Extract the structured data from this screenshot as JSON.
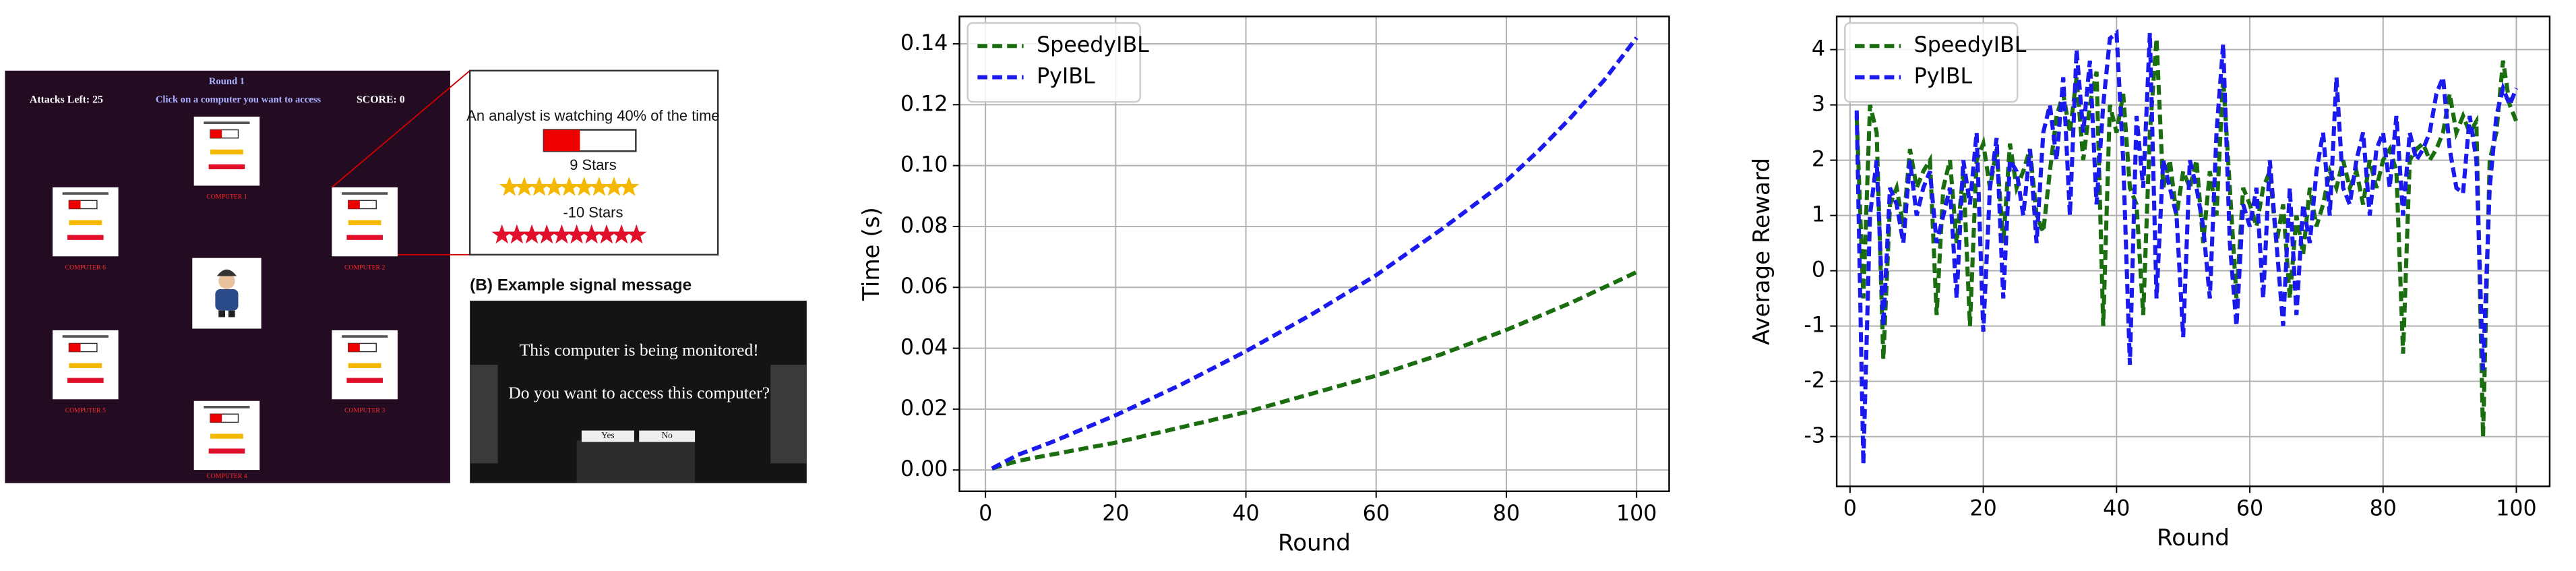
{
  "game": {
    "round": "Round 1",
    "attacks_left": "Attacks Left:  25",
    "instruction": "Click on a computer you want to access",
    "score": "SCORE:  0",
    "computers": [
      "COMPUTER 1",
      "COMPUTER 2",
      "COMPUTER 3",
      "COMPUTER 4",
      "COMPUTER 5",
      "COMPUTER 6"
    ],
    "zoom": {
      "analyst_text": "An analyst is watching 40% of the time",
      "reward_stars": "9 Stars",
      "penalty_stars": "-10 Stars"
    },
    "signal": {
      "caption": "(B) Example signal message",
      "line1": "This computer is being monitored!",
      "line2": "Do you want to access this computer?",
      "yes": "Yes",
      "no": "No"
    }
  },
  "chart_data": [
    {
      "type": "line",
      "xlabel": "Round",
      "ylabel": "Time (s)",
      "legend": "upper left",
      "grid": true,
      "x": [
        1,
        5,
        10,
        15,
        20,
        25,
        30,
        35,
        40,
        45,
        50,
        55,
        60,
        65,
        70,
        75,
        80,
        85,
        90,
        95,
        100
      ],
      "series": [
        {
          "name": "SpeedyIBL",
          "color": "#1a6e0f",
          "values": [
            0.0005,
            0.003,
            0.005,
            0.007,
            0.009,
            0.0115,
            0.014,
            0.0165,
            0.019,
            0.022,
            0.025,
            0.028,
            0.031,
            0.0345,
            0.038,
            0.042,
            0.046,
            0.0505,
            0.055,
            0.06,
            0.065
          ]
        },
        {
          "name": "PyIBL",
          "color": "#1a1aee",
          "values": [
            0.0005,
            0.005,
            0.009,
            0.0135,
            0.018,
            0.023,
            0.028,
            0.0335,
            0.039,
            0.045,
            0.051,
            0.0575,
            0.064,
            0.0715,
            0.079,
            0.087,
            0.095,
            0.105,
            0.116,
            0.128,
            0.142
          ]
        }
      ],
      "xlim": [
        -4,
        105
      ],
      "xticks": [
        0,
        20,
        40,
        60,
        80,
        100
      ],
      "ylim": [
        -0.007,
        0.149
      ],
      "yticks": [
        {
          "value": 0,
          "label": "0.00"
        },
        {
          "value": 0.02,
          "label": "0.02"
        },
        {
          "value": 0.04,
          "label": "0.04"
        },
        {
          "value": 0.06,
          "label": "0.06"
        },
        {
          "value": 0.08,
          "label": "0.08"
        },
        {
          "value": 0.1,
          "label": "0.10"
        },
        {
          "value": 0.12,
          "label": "0.12"
        },
        {
          "value": 0.14,
          "label": "0.14"
        }
      ]
    },
    {
      "type": "line",
      "xlabel": "Round",
      "ylabel": "Average Reward",
      "legend": "upper left",
      "grid": true,
      "x": [
        1,
        2,
        3,
        4,
        5,
        6,
        7,
        8,
        9,
        10,
        11,
        12,
        13,
        14,
        15,
        16,
        17,
        18,
        19,
        20,
        21,
        22,
        23,
        24,
        25,
        26,
        27,
        28,
        29,
        30,
        31,
        32,
        33,
        34,
        35,
        36,
        37,
        38,
        39,
        40,
        41,
        42,
        43,
        44,
        45,
        46,
        47,
        48,
        49,
        50,
        51,
        52,
        53,
        54,
        55,
        56,
        57,
        58,
        59,
        60,
        61,
        62,
        63,
        64,
        65,
        66,
        67,
        68,
        69,
        70,
        71,
        72,
        73,
        74,
        75,
        76,
        77,
        78,
        79,
        80,
        81,
        82,
        83,
        84,
        85,
        86,
        87,
        88,
        89,
        90,
        91,
        92,
        93,
        94,
        95,
        96,
        97,
        98,
        99,
        100
      ],
      "series": [
        {
          "name": "SpeedyIBL",
          "color": "#1a6e0f",
          "values": [
            2.8,
            -0.5,
            3.0,
            2.5,
            -1.6,
            1.2,
            1.5,
            0.8,
            2.2,
            1.5,
            1.8,
            2.0,
            -0.8,
            1.5,
            2.0,
            0.5,
            1.8,
            -1.0,
            2.0,
            2.3,
            1.5,
            2.2,
            0.5,
            2.3,
            1.5,
            1.8,
            2.2,
            1.0,
            0.7,
            1.8,
            2.8,
            3.2,
            2.5,
            3.5,
            2.0,
            3.0,
            3.6,
            -1.0,
            3.0,
            2.5,
            3.2,
            1.5,
            1.2,
            -0.8,
            2.5,
            4.2,
            1.5,
            2.0,
            1.0,
            1.8,
            1.5,
            2.0,
            0.5,
            1.8,
            1.0,
            3.5,
            1.5,
            -0.5,
            1.5,
            1.2,
            0.8,
            1.5,
            1.8,
            0.5,
            1.2,
            -0.5,
            1.0,
            0.3,
            1.5,
            0.8,
            1.2,
            1.8,
            1.5,
            2.0,
            1.5,
            1.8,
            1.2,
            2.0,
            1.5,
            2.0,
            2.2,
            1.8,
            -1.5,
            2.0,
            2.2,
            2.3,
            2.0,
            2.2,
            2.5,
            3.2,
            2.5,
            2.8,
            2.5,
            2.7,
            -3.0,
            2.0,
            2.5,
            3.8,
            3.0,
            2.7
          ]
        },
        {
          "name": "PyIBL",
          "color": "#1a1aee",
          "values": [
            2.9,
            -3.5,
            1.0,
            2.0,
            -1.0,
            1.5,
            1.2,
            0.5,
            2.0,
            1.0,
            1.5,
            1.8,
            0.5,
            1.0,
            1.5,
            -0.5,
            2.0,
            1.2,
            2.5,
            -1.1,
            1.5,
            2.4,
            -0.5,
            2.0,
            1.8,
            1.0,
            2.2,
            0.5,
            2.5,
            3.0,
            2.0,
            3.5,
            1.0,
            4.0,
            2.5,
            3.8,
            1.2,
            3.0,
            4.2,
            4.3,
            2.0,
            -1.7,
            2.8,
            1.5,
            4.3,
            -0.5,
            2.0,
            1.5,
            1.0,
            -1.2,
            2.0,
            1.5,
            0.8,
            -0.5,
            2.5,
            4.1,
            0.5,
            -1.0,
            1.2,
            0.8,
            1.5,
            -0.5,
            2.0,
            0.5,
            -1.0,
            1.5,
            -0.8,
            1.2,
            0.5,
            1.8,
            2.5,
            1.0,
            3.5,
            1.5,
            1.2,
            2.0,
            2.5,
            1.0,
            2.2,
            2.5,
            1.5,
            2.8,
            1.0,
            2.5,
            2.0,
            2.2,
            2.5,
            3.2,
            3.5,
            2.2,
            1.5,
            1.4,
            2.8,
            2.0,
            -1.8,
            1.5,
            2.8,
            3.3,
            3.0,
            3.3
          ]
        }
      ],
      "xlim": [
        -2,
        105
      ],
      "xticks": [
        0,
        20,
        40,
        60,
        80,
        100
      ],
      "ylim": [
        -3.9,
        4.6
      ],
      "yticks": [
        -3,
        -2,
        -1,
        0,
        1,
        2,
        3,
        4
      ]
    }
  ]
}
